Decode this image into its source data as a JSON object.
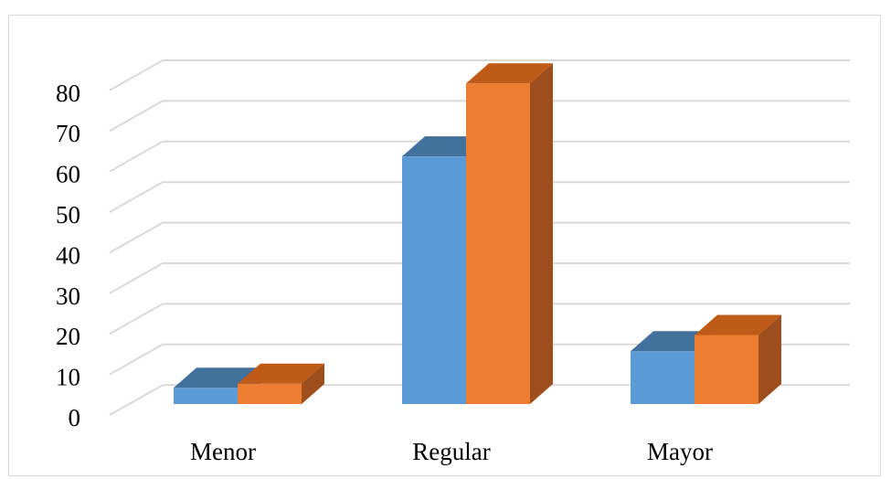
{
  "chart_data": {
    "type": "bar",
    "style": "3d-clustered-column",
    "categories": [
      "Menor",
      "Regular",
      "Mayor"
    ],
    "series": [
      {
        "values": [
          4,
          61,
          13
        ],
        "color": "#5B9BD5",
        "top_color": "#41719C",
        "side_color": "#41719C"
      },
      {
        "values": [
          5,
          79,
          17
        ],
        "color": "#ED7D31",
        "top_color": "#C05A18",
        "side_color": "#9E4D1C"
      }
    ],
    "title": "",
    "xlabel": "",
    "ylabel": "",
    "ylim": [
      0,
      80
    ],
    "y_ticks": [
      "0",
      "10",
      "20",
      "30",
      "40",
      "50",
      "60",
      "70",
      "80"
    ],
    "grid": true,
    "legend": "none"
  }
}
